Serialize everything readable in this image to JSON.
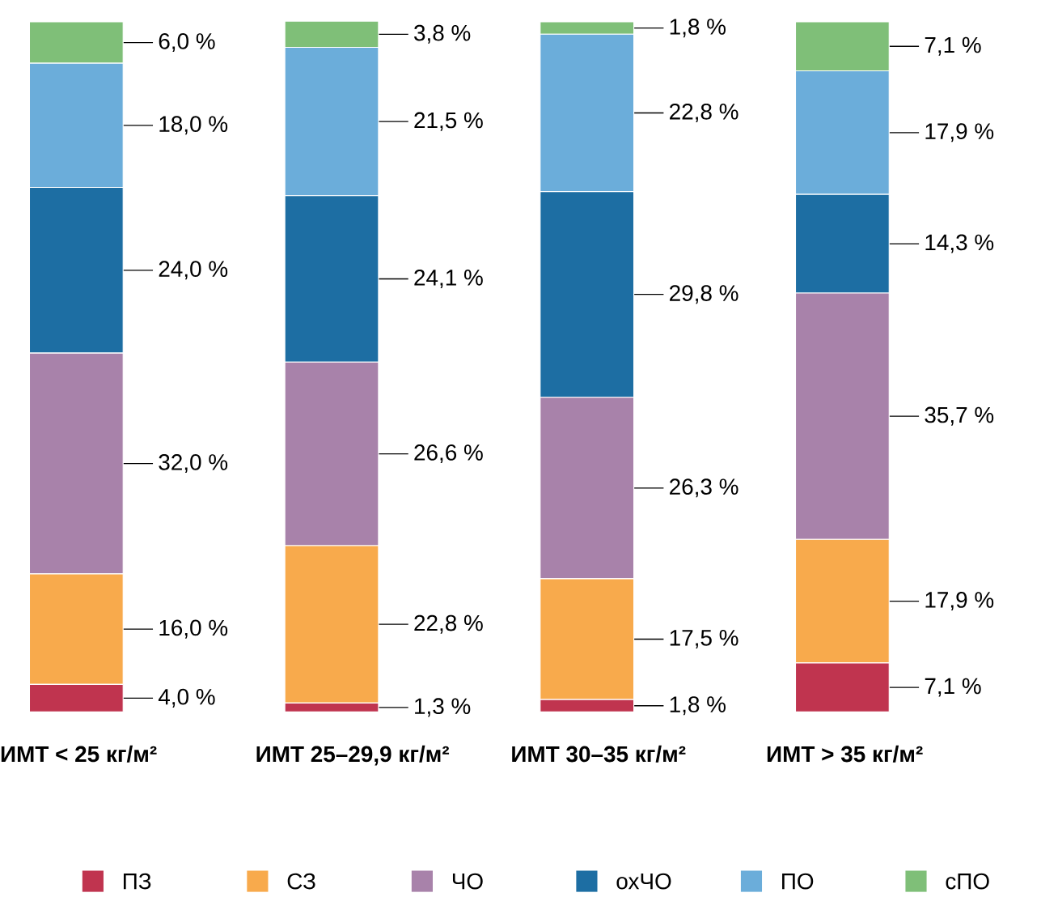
{
  "chart_data": {
    "type": "bar",
    "stacked": true,
    "data_labels": true,
    "legend": "bottom",
    "categories": [
      "ИМТ < 25 кг/м²",
      "ИМТ 25–29,9 кг/м²",
      "ИМТ 30–35 кг/м²",
      "ИМТ > 35 кг/м²"
    ],
    "series": [
      {
        "name": "ПЗ",
        "color": "#c0344f",
        "values": [
          4.0,
          1.3,
          1.8,
          7.1
        ],
        "value_labels": [
          "4,0 %",
          "1,3 %",
          "1,8 %",
          "7,1 %"
        ]
      },
      {
        "name": "СЗ",
        "color": "#f8aa4c",
        "values": [
          16.0,
          22.8,
          17.5,
          17.9
        ],
        "value_labels": [
          "16,0 %",
          "22,8 %",
          "17,5 %",
          "17,9 %"
        ]
      },
      {
        "name": "ЧО",
        "color": "#a882aa",
        "values": [
          32.0,
          26.6,
          26.3,
          35.7
        ],
        "value_labels": [
          "32,0 %",
          "26,6 %",
          "26,3 %",
          "35,7 %"
        ]
      },
      {
        "name": "охЧО",
        "color": "#1d6ea3",
        "values": [
          24.0,
          24.1,
          29.8,
          14.3
        ],
        "value_labels": [
          "24,0 %",
          "24,1 %",
          "29,8 %",
          "14,3 %"
        ]
      },
      {
        "name": "ПО",
        "color": "#6badda",
        "values": [
          18.0,
          21.5,
          22.8,
          17.9
        ],
        "value_labels": [
          "18,0 %",
          "21,5 %",
          "22,8 %",
          "17,9 %"
        ]
      },
      {
        "name": "сПО",
        "color": "#7fbf78",
        "values": [
          6.0,
          3.8,
          1.8,
          7.1
        ],
        "value_labels": [
          "6,0 %",
          "3,8 %",
          "1,8 %",
          "7,1 %"
        ]
      }
    ]
  }
}
